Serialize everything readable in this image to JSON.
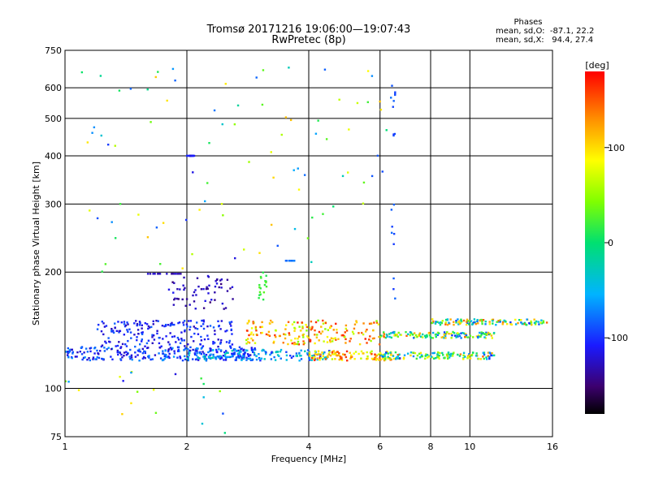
{
  "header": {
    "title_line1": "Tromsø 20171216 19:06:00—19:07:43",
    "title_line2": "RwPretec (8p)",
    "stats_title": "Phases",
    "stats_line1": "mean, sd,O:  -87.1, 22.2",
    "stats_line2": "mean, sd,X:   94.4, 27.4"
  },
  "colorbar": {
    "unit_label": "[deg]",
    "ticks": [
      "100",
      "0",
      "-100"
    ],
    "tick_values": [
      100,
      0,
      -100
    ],
    "range": [
      -180,
      180
    ]
  },
  "chart_data": {
    "type": "scatter",
    "title": "Tromsø 20171216 19:06:00—19:07:43",
    "subtitle": "RwPretec (8p)",
    "xlabel": "Frequency [MHz]",
    "ylabel": "Stationary phase Virtual Height [km]",
    "x_scale": "log",
    "y_scale": "log",
    "xlim": [
      1,
      16
    ],
    "ylim": [
      75,
      750
    ],
    "x_ticks": [
      1,
      2,
      4,
      6,
      8,
      10,
      16
    ],
    "x_tick_labels": [
      "1",
      "2",
      "4",
      "6",
      "8",
      "10",
      "16"
    ],
    "y_ticks": [
      75,
      100,
      200,
      300,
      400,
      500,
      600,
      750
    ],
    "y_tick_labels": [
      "75",
      "100",
      "200",
      "300",
      "400",
      "500",
      "600",
      "750"
    ],
    "grid": true,
    "color_scale": "phase [deg], rainbow from -180 (black/violet) to 180 (red)",
    "clusters": [
      {
        "x_range": [
          1.0,
          3.0
        ],
        "y_range": [
          118,
          128
        ],
        "phase_range": [
          -130,
          -60
        ],
        "count": 260
      },
      {
        "x_range": [
          1.2,
          2.6
        ],
        "y_range": [
          128,
          150
        ],
        "phase_range": [
          -130,
          -80
        ],
        "count": 190
      },
      {
        "x_range": [
          2.0,
          4.5
        ],
        "y_range": [
          118,
          126
        ],
        "phase_range": [
          -110,
          -20
        ],
        "count": 150
      },
      {
        "x_range": [
          2.8,
          6.0
        ],
        "y_range": [
          130,
          150
        ],
        "phase_range": [
          40,
          170
        ],
        "count": 180
      },
      {
        "x_range": [
          4.0,
          6.5
        ],
        "y_range": [
          118,
          125
        ],
        "phase_range": [
          60,
          170
        ],
        "count": 110
      },
      {
        "x_range": [
          6.0,
          11.5
        ],
        "y_range": [
          119,
          124
        ],
        "phase_range": [
          -110,
          150
        ],
        "count": 140
      },
      {
        "x_range": [
          6.0,
          11.5
        ],
        "y_range": [
          135,
          140
        ],
        "phase_range": [
          -110,
          150
        ],
        "count": 130
      },
      {
        "x_range": [
          8.0,
          15.5
        ],
        "y_range": [
          146,
          151
        ],
        "phase_range": [
          -110,
          150
        ],
        "count": 120
      },
      {
        "x_range": [
          1.8,
          2.6
        ],
        "y_range": [
          160,
          200
        ],
        "phase_range": [
          -150,
          -110
        ],
        "count": 60
      },
      {
        "x_range": [
          1.0,
          2.5
        ],
        "y_range": [
          75,
          112
        ],
        "phase_range": [
          -120,
          130
        ],
        "count": 20
      },
      {
        "x_range": [
          1.1,
          6.5
        ],
        "y_range": [
          200,
          680
        ],
        "phase_range": [
          -120,
          120
        ],
        "count": 90
      }
    ],
    "point_lines": [
      {
        "x": [
          1.6,
          1.95
        ],
        "y": 198,
        "phase": -130
      },
      {
        "x": [
          3.5,
          3.7
        ],
        "y": 214,
        "phase": -80
      },
      {
        "x": [
          2.0,
          2.1
        ],
        "y": 400,
        "phase": -110
      },
      {
        "x": [
          3.0,
          3.15
        ],
        "y": [
          165,
          200
        ],
        "phase": 20
      },
      {
        "x": [
          6.4,
          6.55
        ],
        "y": [
          140,
          660
        ],
        "phase": -90
      }
    ]
  }
}
